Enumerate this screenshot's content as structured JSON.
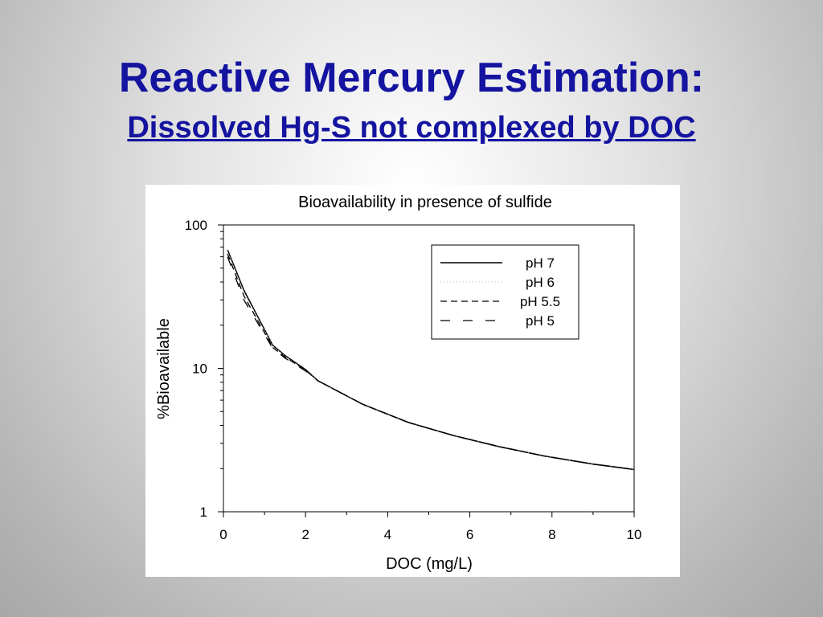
{
  "slide": {
    "title": "Reactive Mercury Estimation:",
    "subtitle": "Dissolved Hg-S not complexed by DOC"
  },
  "colors": {
    "title": "#1414a0",
    "series_line": "#000000",
    "panel": "#ffffff"
  },
  "chart_data": {
    "type": "line",
    "title": "Bioavailability in presence of sulfide",
    "xlabel": "DOC (mg/L)",
    "ylabel": "%Bioavailable",
    "xlim": [
      0,
      10
    ],
    "ylim": [
      1,
      100
    ],
    "yscale": "log",
    "xticks": [
      0,
      2,
      4,
      6,
      8,
      10
    ],
    "xtick_labels": [
      "0",
      "2",
      "4",
      "6",
      "8",
      "10"
    ],
    "yticks": [
      1,
      10,
      100
    ],
    "ytick_labels": [
      "1",
      "10",
      "100"
    ],
    "grid": false,
    "legend_position": "top-right",
    "series": [
      {
        "name": "pH 7",
        "dash": "solid",
        "x": [
          0.1,
          0.5,
          1.2,
          1.5,
          2.0,
          2.3,
          3.4,
          4.5,
          5.6,
          6.7,
          7.8,
          9.0,
          10.0
        ],
        "y": [
          67,
          35,
          14.5,
          12.3,
          9.8,
          8.2,
          5.6,
          4.2,
          3.4,
          2.85,
          2.45,
          2.15,
          1.97
        ]
      },
      {
        "name": "pH 6",
        "dash": "dotted",
        "x": [
          0.1,
          0.5,
          1.2,
          1.5,
          2.0,
          2.3,
          3.4,
          4.5,
          5.6,
          6.7,
          7.8,
          9.0,
          10.0
        ],
        "y": [
          66,
          34,
          14.4,
          12.2,
          9.7,
          8.2,
          5.6,
          4.2,
          3.4,
          2.85,
          2.45,
          2.15,
          1.97
        ]
      },
      {
        "name": "pH 5.5",
        "dash": "dashed",
        "x": [
          0.1,
          0.5,
          1.2,
          1.5,
          2.0,
          2.3,
          3.4,
          4.5,
          5.6,
          6.7,
          7.8,
          9.0,
          10.0
        ],
        "y": [
          63,
          32,
          14.0,
          12.0,
          9.7,
          8.2,
          5.6,
          4.2,
          3.4,
          2.85,
          2.45,
          2.15,
          1.97
        ]
      },
      {
        "name": "pH 5",
        "dash": "long-dash",
        "x": [
          0.1,
          0.5,
          1.2,
          1.5,
          2.0,
          2.3,
          3.4,
          4.5,
          5.6,
          6.7,
          7.8,
          9.0,
          10.0
        ],
        "y": [
          60,
          30,
          13.8,
          11.8,
          9.6,
          8.2,
          5.6,
          4.2,
          3.4,
          2.85,
          2.45,
          2.15,
          1.97
        ]
      }
    ]
  }
}
